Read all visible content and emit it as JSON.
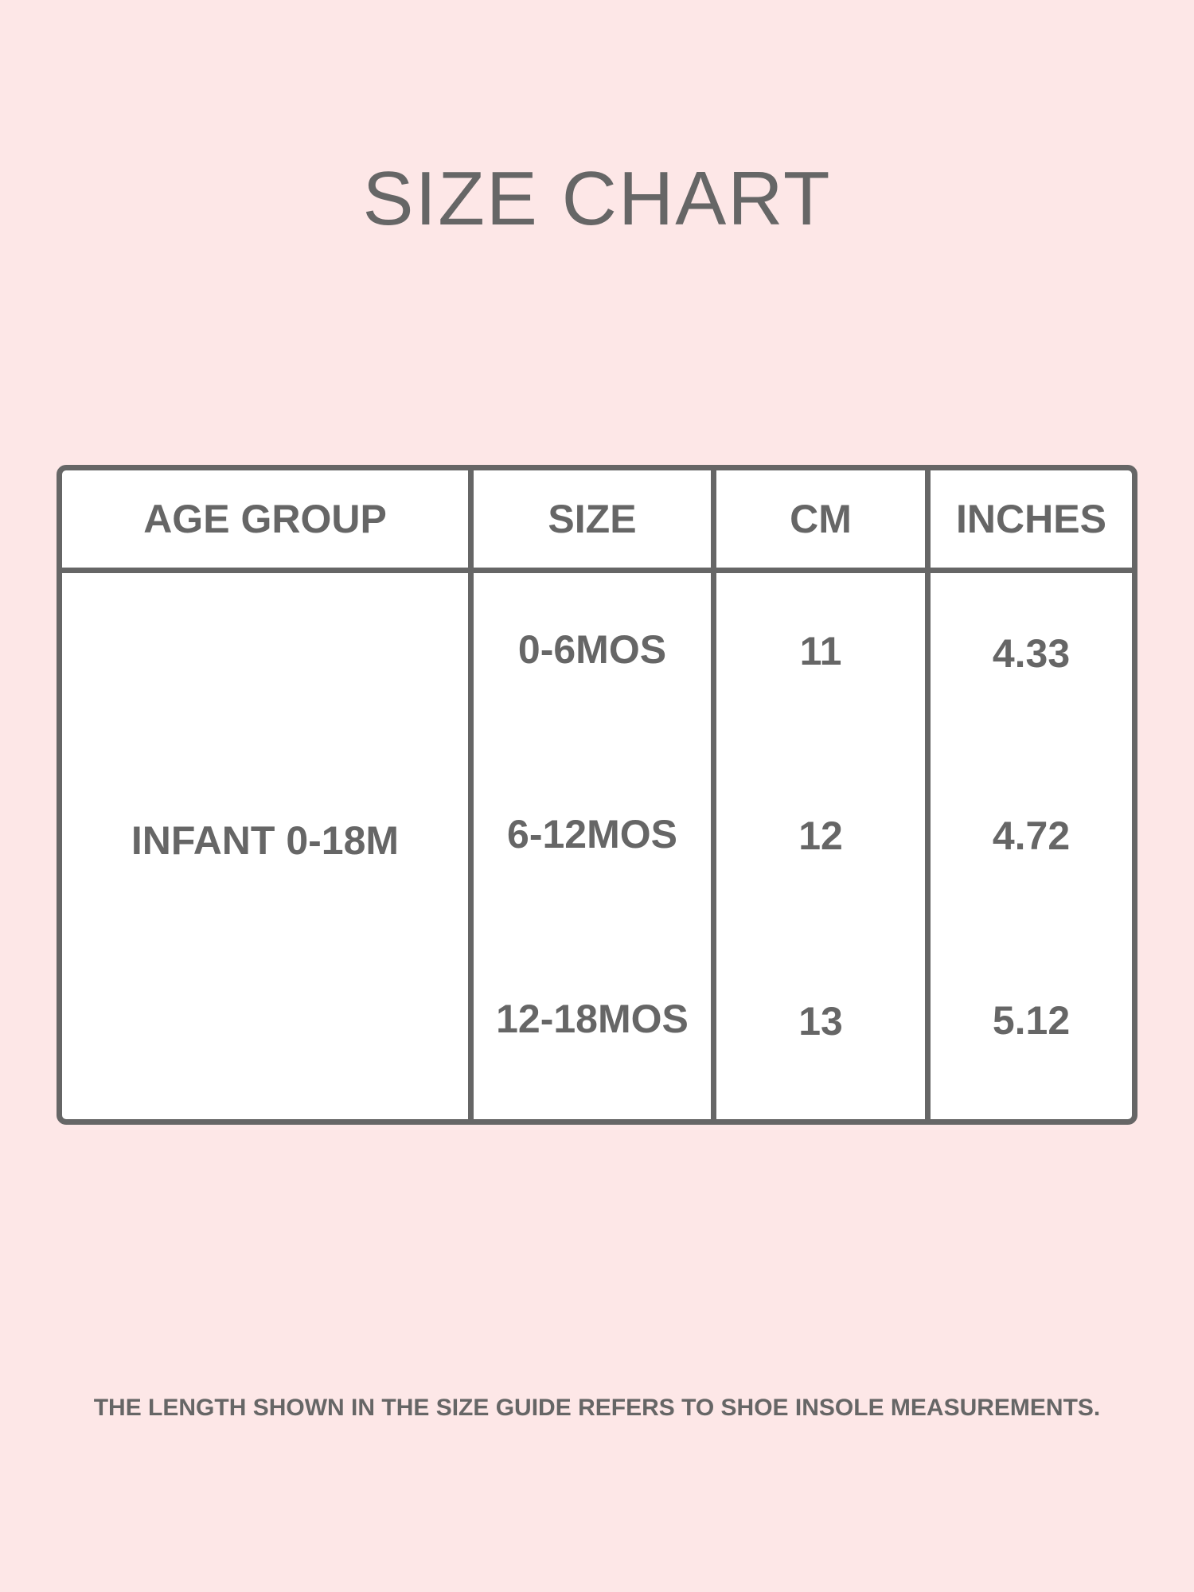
{
  "title": "SIZE CHART",
  "table": {
    "headers": [
      "AGE GROUP",
      "SIZE",
      "CM",
      "INCHES"
    ],
    "age_group": "INFANT 0-18M",
    "rows": [
      {
        "size": "0-6MOS",
        "cm": "11",
        "inches": "4.33"
      },
      {
        "size": "6-12MOS",
        "cm": "12",
        "inches": "4.72"
      },
      {
        "size": "12-18MOS",
        "cm": "13",
        "inches": "5.12"
      }
    ]
  },
  "footer": "THE LENGTH SHOWN IN THE SIZE GUIDE REFERS TO SHOE INSOLE MEASUREMENTS.",
  "colors": {
    "background": "#fde7e7",
    "text": "#666666",
    "border": "#666666"
  }
}
